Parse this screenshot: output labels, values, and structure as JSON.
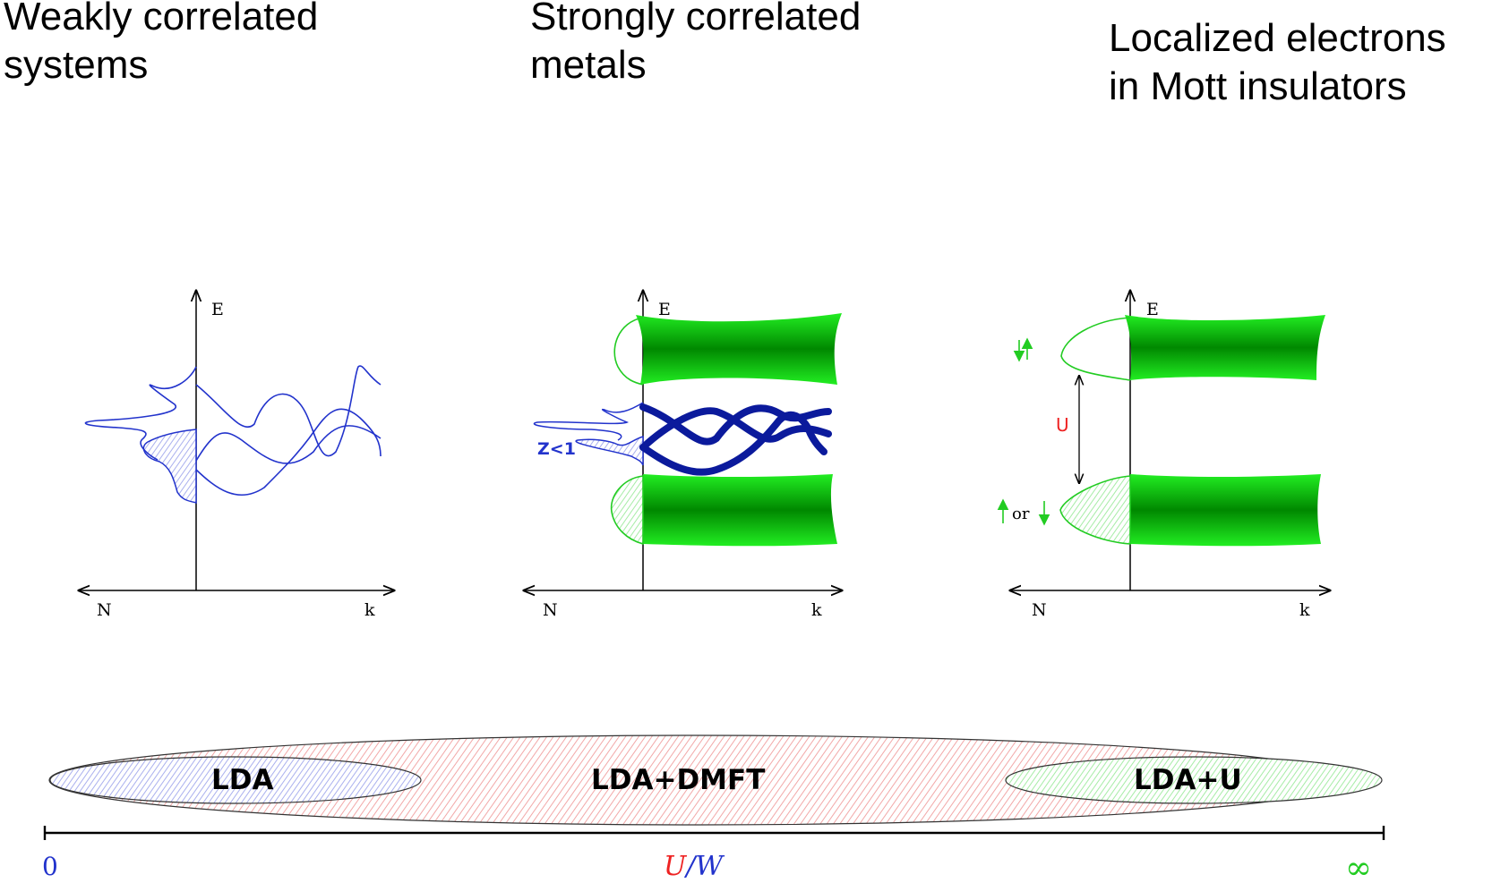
{
  "headings": [
    {
      "line1": "Weakly correlated",
      "line2": "systems"
    },
    {
      "line1": "Strongly correlated",
      "line2": "metals"
    },
    {
      "line1": "Localized electrons",
      "line2": "in Mott insulators"
    }
  ],
  "axes": {
    "energy": "E",
    "dos": "N",
    "momentum": "k"
  },
  "labels": {
    "quasiparticle_weight": "Z<1",
    "hubbard_u": "U",
    "spin_or": "or"
  },
  "methods": {
    "left": "LDA",
    "center": "LDA+DMFT",
    "right": "LDA+U"
  },
  "scale": {
    "start": "0",
    "u": "U",
    "slash": "/",
    "w": "W",
    "end": "∞"
  },
  "colors": {
    "blue": "#2233cc",
    "dark_blue": "#0b1a9c",
    "green": "#22dd22",
    "dark_green": "#008800",
    "red": "#ee2222",
    "hatch_red": "#f2a8a8",
    "hatch_blue": "#aab0ee",
    "hatch_green": "#a6eca6"
  }
}
